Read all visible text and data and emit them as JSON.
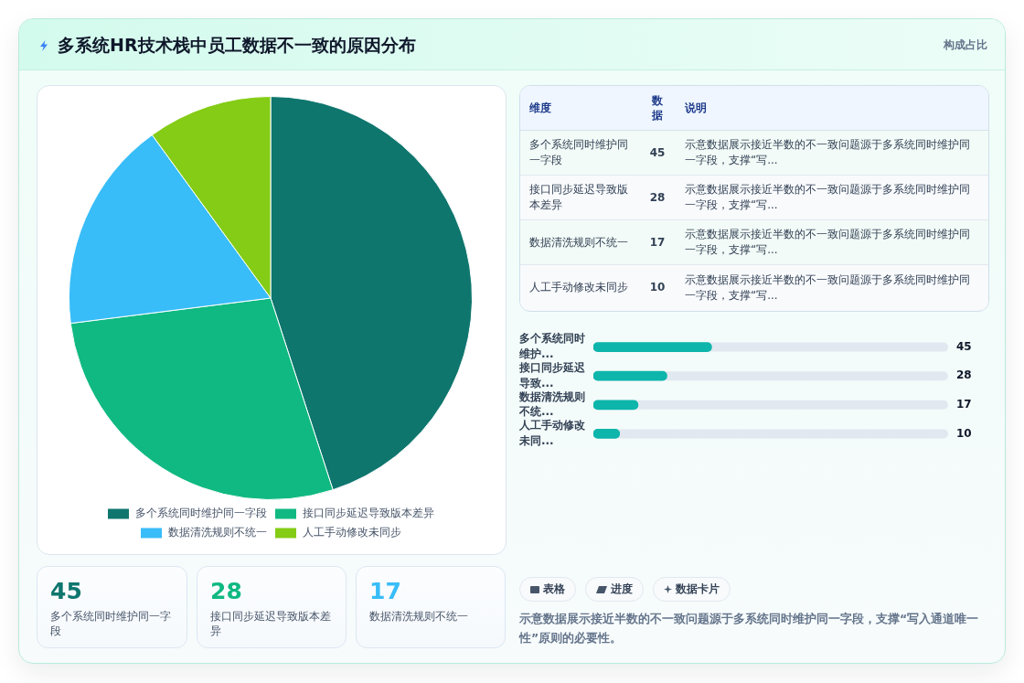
{
  "chart_data": [
    {
      "type": "pie",
      "title": "多系统HR技术栈中员工数据不一致的原因分布",
      "categories": [
        "多个系统同时维护同一字段",
        "接口同步延迟导致版本差异",
        "数据清洗规则不统一",
        "人工手动修改未同步"
      ],
      "values": [
        45,
        28,
        17,
        10
      ],
      "colors": [
        "#0f766e",
        "#10b981",
        "#38bdf8",
        "#84cc16"
      ],
      "legend": "bottom"
    },
    {
      "type": "other",
      "title": "构成占比",
      "categories": [
        "多个系统同时维护同一字段",
        "接口同步延迟导致版本差异",
        "数据清洗规则不统一",
        "人工手动修改未同步"
      ],
      "values": [
        45,
        28,
        17,
        10
      ],
      "data_labels": true,
      "annotations": [
        "维度",
        "数据",
        "说明",
        "示意数据展示接近半数的不一致问题源于多系统同时维护同一字段，支撑“写...",
        "示意数据展示接近半数的不一致问题源于多系统同时维护同一字段，支撑“写...",
        "示意数据展示接近半数的不一致问题源于多系统同时维护同一字段，支撑“写...",
        "示意数据展示接近半数的不一致问题源于多系统同时维护同一字段，支撑“写..."
      ]
    },
    {
      "type": "bar",
      "orientation": "horizontal",
      "categories": [
        "多个系统同时维护...",
        "接口同步延迟导致...",
        "数据清洗规则不统...",
        "人工手动修改未同..."
      ],
      "values": [
        45,
        28,
        17,
        10
      ],
      "color": "#0db5ab",
      "xlim": [
        0,
        135
      ],
      "tick_labels": "y",
      "data_labels": true,
      "annotations": [
        "表格",
        "进度",
        "数据卡片",
        "示意数据展示接近半数的不一致问题源于多系统同时维护同一字段，支撑“写入通道唯一性”原则的必要性。"
      ]
    },
    {
      "type": "other",
      "categories": [
        "多个系统同时维护同一字段",
        "接口同步延迟导致版本差异",
        "数据清洗规则不统一"
      ],
      "values": [
        45,
        28,
        17
      ],
      "data_labels": true
    }
  ]
}
